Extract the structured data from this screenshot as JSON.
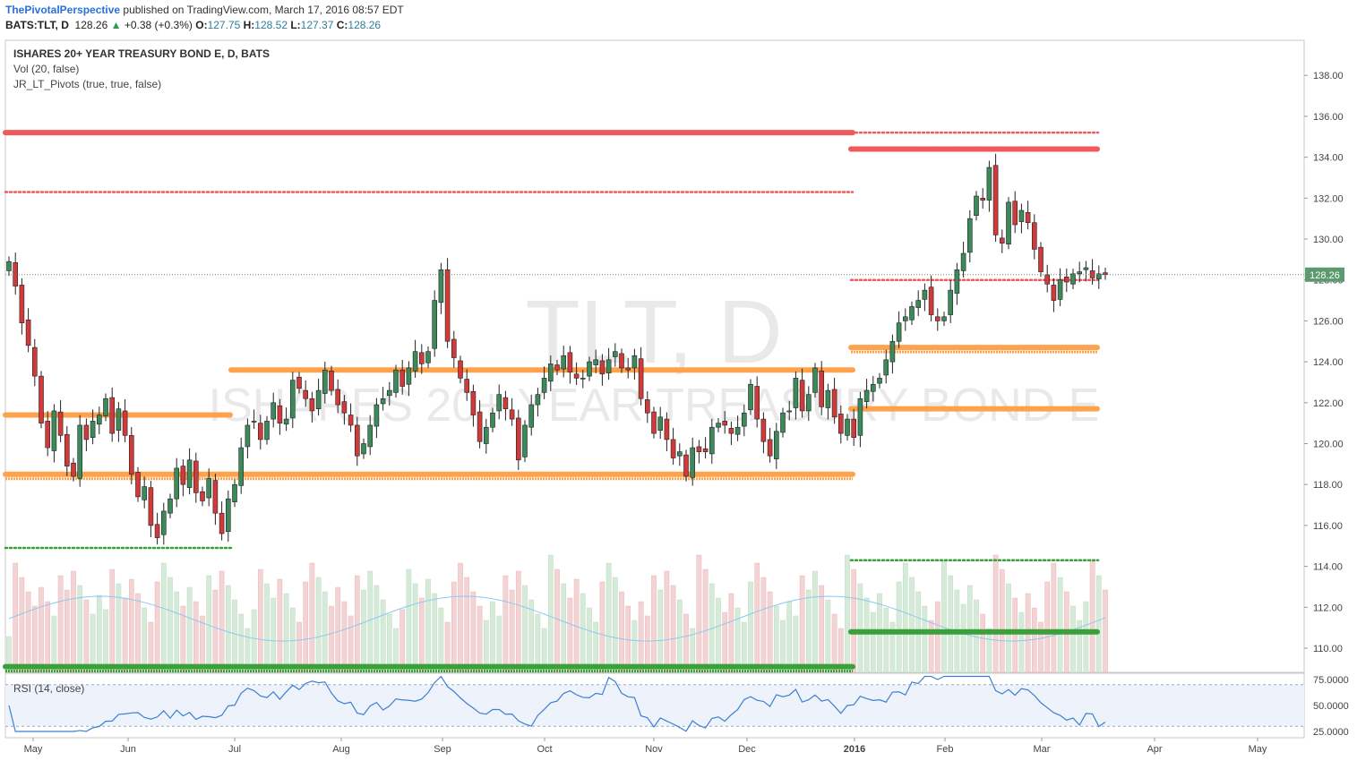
{
  "header": {
    "brand": "ThePivotalPerspective",
    "published": "published on TradingView.com, March 17, 2016 08:57 EDT"
  },
  "quote": {
    "symbol": "BATS:TLT, D",
    "last": "128.26",
    "change": "+0.38 (+0.3%)",
    "o_label": "O:",
    "o": "127.75",
    "h_label": "H:",
    "h": "128.52",
    "l_label": "L:",
    "l": "127.37",
    "c_label": "C:",
    "c": "128.26"
  },
  "legend": {
    "title": "ISHARES 20+ YEAR TREASURY BOND E, D, BATS",
    "vol": "Vol (20, false)",
    "pivots": "JR_LT_Pivots (true, true, false)",
    "rsi": "RSI (14, close)"
  },
  "watermark": {
    "symbol": "TLT, D",
    "name": "ISHARES 20+ YEAR TREASURY BOND E"
  },
  "colors": {
    "up": "#3c8a5a",
    "down": "#d03a3a",
    "pivot_red": "#f05a5a",
    "pivot_orange": "#ffa24d",
    "pivot_green": "#3aa03a",
    "rsi_line": "#3b7fd4",
    "rsi_band": "#eef3fb",
    "vol_ma": "#8cc8ee"
  },
  "chart_data": {
    "type": "candlestick",
    "price_axis": {
      "ticks": [
        "110.00",
        "112.00",
        "114.00",
        "116.00",
        "118.00",
        "120.00",
        "122.00",
        "124.00",
        "126.00",
        "128.00",
        "130.00",
        "132.00",
        "134.00",
        "136.00",
        "138.00"
      ],
      "range": [
        109,
        139
      ],
      "last_price_label": "128.26"
    },
    "time_axis": {
      "labels": [
        "May",
        "Jun",
        "Jul",
        "Aug",
        "Sep",
        "Oct",
        "Nov",
        "Dec",
        "2016",
        "Feb",
        "Mar",
        "Apr",
        "May"
      ]
    },
    "rsi_axis": {
      "ticks": [
        "25.0000",
        "50.0000",
        "75.0000"
      ],
      "range": [
        20,
        80
      ],
      "bands": [
        30,
        70
      ]
    },
    "candles_close": [
      128.9,
      127.7,
      125.9,
      124.8,
      123.3,
      121.0,
      119.8,
      121.6,
      120.4,
      118.9,
      118.4,
      120.9,
      120.2,
      121.1,
      121.4,
      122.2,
      120.5,
      121.7,
      120.4,
      118.5,
      117.4,
      117.9,
      116.0,
      115.4,
      116.7,
      117.3,
      118.8,
      118.0,
      119.2,
      117.6,
      117.2,
      118.3,
      116.6,
      115.6,
      117.3,
      118.0,
      119.8,
      120.9,
      121.1,
      120.2,
      121.1,
      122.0,
      121.0,
      121.2,
      123.1,
      122.7,
      122.2,
      121.6,
      122.6,
      123.6,
      122.6,
      121.9,
      121.5,
      120.9,
      119.4,
      120.0,
      120.9,
      121.9,
      122.2,
      122.6,
      123.6,
      122.8,
      123.7,
      124.5,
      123.9,
      124.5,
      127.0,
      128.5,
      125.0,
      124.2,
      123.2,
      122.5,
      121.4,
      120.1,
      120.8,
      121.5,
      122.4,
      121.7,
      121.2,
      119.2,
      120.9,
      121.9,
      122.4,
      123.2,
      123.9,
      123.6,
      124.3,
      123.5,
      123.2,
      123.2,
      124.0,
      124.1,
      123.4,
      124.1,
      124.5,
      123.7,
      123.6,
      124.3,
      122.2,
      121.5,
      120.5,
      121.3,
      120.2,
      119.3,
      119.6,
      118.4,
      119.8,
      119.6,
      119.6,
      120.8,
      121.0,
      120.9,
      120.5,
      120.8,
      121.5,
      122.9,
      121.2,
      120.1,
      119.4,
      120.6,
      121.5,
      121.6,
      123.2,
      121.6,
      122.4,
      123.7,
      121.8,
      122.6,
      121.3,
      120.5,
      121.2,
      120.3,
      122.2,
      122.6,
      122.9,
      123.2,
      124.1,
      125.0,
      125.9,
      126.2,
      126.7,
      127.0,
      127.5,
      126.3,
      126.0,
      126.2,
      127.5,
      128.5,
      129.3,
      131.0,
      132.1,
      131.9,
      133.5,
      130.2,
      129.8,
      131.8,
      130.7,
      131.4,
      130.8,
      129.5,
      128.4,
      127.8,
      127.0,
      128.0,
      127.9,
      128.3,
      128.4,
      128.6,
      128.1,
      128.3,
      128.26
    ],
    "pivot_levels": {
      "red": [
        135.2,
        132.3,
        134.4,
        128.0
      ],
      "orange": [
        123.6,
        121.4,
        118.5,
        124.7,
        121.7
      ],
      "green": [
        114.9,
        109.1,
        114.3,
        110.8
      ]
    }
  }
}
